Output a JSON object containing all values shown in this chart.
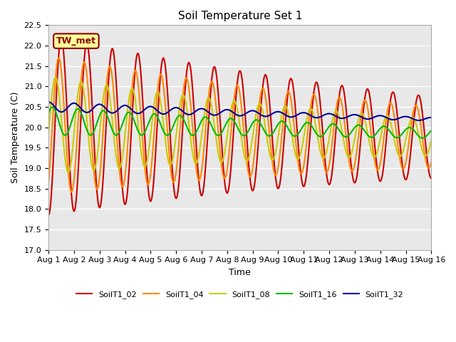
{
  "title": "Soil Temperature Set 1",
  "xlabel": "Time",
  "ylabel": "Soil Temperature (C)",
  "ylim": [
    17.0,
    22.5
  ],
  "annotation": "TW_met",
  "annotation_color": "#8B0000",
  "annotation_bg": "#FFFF99",
  "bg_color": "#E8E8E8",
  "series": {
    "SoilT1_02": {
      "color": "#CC0000",
      "lw": 1.5
    },
    "SoilT1_04": {
      "color": "#FF8800",
      "lw": 1.5
    },
    "SoilT1_08": {
      "color": "#CCCC00",
      "lw": 1.5
    },
    "SoilT1_16": {
      "color": "#00BB00",
      "lw": 1.5
    },
    "SoilT1_32": {
      "color": "#000099",
      "lw": 1.5
    }
  },
  "xtick_labels": [
    "Aug 1",
    "Aug 2",
    "Aug 3",
    "Aug 4",
    "Aug 5",
    "Aug 6",
    "Aug 7",
    "Aug 8",
    "Aug 9",
    "Aug 10",
    "Aug 11",
    "Aug 12",
    "Aug 13",
    "Aug 14",
    "Aug 15",
    "Aug 16"
  ],
  "ytick_labels": [
    "17.0",
    "17.5",
    "18.0",
    "18.5",
    "19.0",
    "19.5",
    "20.0",
    "20.5",
    "21.0",
    "21.5",
    "22.0",
    "22.5"
  ]
}
